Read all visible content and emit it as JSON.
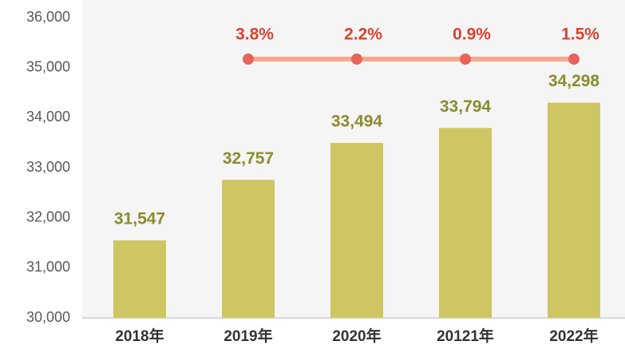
{
  "chart_data": {
    "type": "bar",
    "categories": [
      "2018年",
      "2019年",
      "2020年",
      "20121年",
      "2022年"
    ],
    "values": [
      31547,
      32757,
      33494,
      33794,
      34298
    ],
    "value_labels": [
      "31,547",
      "32,757",
      "33,494",
      "33,794",
      "34,298"
    ],
    "color": "#cdc662",
    "ylim": [
      30000,
      36000
    ],
    "yticks": [
      {
        "value": 30000,
        "label": "30,000"
      },
      {
        "value": 31000,
        "label": "31,000"
      },
      {
        "value": 32000,
        "label": "32,000"
      },
      {
        "value": 33000,
        "label": "33,000"
      },
      {
        "value": 34000,
        "label": "34,000"
      },
      {
        "value": 35000,
        "label": "35,000"
      },
      {
        "value": 36000,
        "label": "36,000"
      }
    ],
    "growth": {
      "values": [
        null,
        3.8,
        2.2,
        0.9,
        1.5
      ],
      "value_labels": [
        null,
        "3.8%",
        "2.2%",
        "0.9%",
        "1.5%"
      ],
      "color": "#f4a98a",
      "marker_color": "#e8635a",
      "label_color": "#d9432f"
    }
  }
}
